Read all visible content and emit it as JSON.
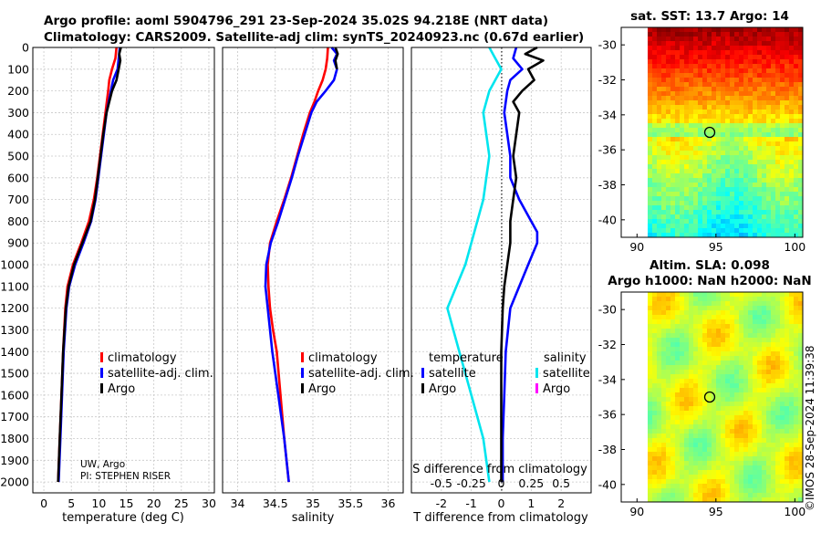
{
  "title": {
    "line1": "Argo profile: aoml 5904796_291 23-Sep-2024 35.02S 94.218E (NRT data)",
    "line2": "Climatology: CARS2009. Satellite-adj clim: synTS_20240923.nc (0.67d earlier)"
  },
  "chart_data": [
    {
      "id": "temperature",
      "type": "line",
      "xlabel": "temperature (deg C)",
      "ylabel": "",
      "xlim": [
        -2,
        31
      ],
      "ylim": [
        2050,
        0
      ],
      "xticks": [
        0,
        5,
        10,
        15,
        20,
        25,
        30
      ],
      "yticks": [
        0,
        100,
        200,
        300,
        400,
        500,
        600,
        700,
        800,
        900,
        1000,
        1100,
        1200,
        1300,
        1400,
        1500,
        1600,
        1700,
        1800,
        1900,
        2000
      ],
      "series": [
        {
          "name": "climatology",
          "color": "#ff0000",
          "depth": [
            0,
            50,
            100,
            150,
            200,
            300,
            400,
            500,
            600,
            700,
            800,
            900,
            1000,
            1100,
            1200,
            1400,
            1600,
            1800,
            2000
          ],
          "values": [
            13.2,
            13.0,
            12.4,
            11.9,
            11.7,
            11.2,
            10.7,
            10.2,
            9.7,
            9.1,
            8.2,
            6.8,
            5.3,
            4.3,
            3.9,
            3.5,
            3.2,
            2.9,
            2.6
          ]
        },
        {
          "name": "satellite-adj. clim.",
          "color": "#0000ff",
          "depth": [
            0,
            50,
            100,
            150,
            200,
            300,
            400,
            500,
            600,
            700,
            800,
            900,
            1000,
            1100,
            1200,
            1400,
            1600,
            1800,
            2000
          ],
          "values": [
            13.8,
            13.6,
            13.4,
            12.6,
            12.2,
            11.4,
            10.9,
            10.4,
            9.9,
            9.4,
            8.6,
            7.2,
            5.7,
            4.6,
            4.1,
            3.6,
            3.3,
            3.0,
            2.7
          ]
        },
        {
          "name": "Argo",
          "color": "#000000",
          "depth": [
            0,
            30,
            60,
            100,
            150,
            200,
            300,
            400,
            500,
            600,
            700,
            800,
            900,
            1000,
            1100,
            1200,
            1400,
            1600,
            1800,
            2000
          ],
          "values": [
            14.0,
            13.7,
            13.9,
            13.6,
            13.2,
            12.4,
            11.4,
            10.8,
            10.3,
            9.8,
            9.3,
            8.5,
            7.0,
            5.5,
            4.5,
            4.0,
            3.5,
            3.2,
            2.9,
            2.6
          ]
        }
      ],
      "annotations": [
        "UW, Argo",
        "PI: STEPHEN RISER"
      ],
      "legend": [
        "climatology",
        "satellite-adj. clim.",
        "Argo"
      ]
    },
    {
      "id": "salinity",
      "type": "line",
      "xlabel": "salinity",
      "xlim": [
        33.8,
        36.2
      ],
      "ylim": [
        2050,
        0
      ],
      "xticks": [
        34,
        34.5,
        35,
        35.5,
        36
      ],
      "series": [
        {
          "name": "climatology",
          "color": "#ff0000",
          "depth": [
            0,
            50,
            100,
            150,
            200,
            250,
            300,
            400,
            500,
            600,
            700,
            800,
            900,
            1000,
            1100,
            1200,
            1300,
            1400,
            1600,
            1800,
            2000
          ],
          "values": [
            35.2,
            35.19,
            35.17,
            35.13,
            35.07,
            35.02,
            34.96,
            34.87,
            34.79,
            34.71,
            34.62,
            34.52,
            34.43,
            34.4,
            34.41,
            34.43,
            34.47,
            34.52,
            34.57,
            34.62,
            34.68
          ]
        },
        {
          "name": "satellite-adj. clim.",
          "color": "#0000ff",
          "depth": [
            0,
            30,
            60,
            100,
            150,
            200,
            250,
            300,
            400,
            500,
            600,
            700,
            800,
            900,
            1000,
            1100,
            1200,
            1300,
            1400,
            1600,
            1800,
            2000
          ],
          "values": [
            35.25,
            35.32,
            35.28,
            35.32,
            35.28,
            35.17,
            35.05,
            34.98,
            34.89,
            34.8,
            34.72,
            34.63,
            34.54,
            34.44,
            34.38,
            34.37,
            34.4,
            34.43,
            34.46,
            34.54,
            34.62,
            34.68
          ]
        },
        {
          "name": "Argo",
          "color": "#000000",
          "depth": [
            0,
            30,
            60,
            100
          ],
          "values": [
            35.3,
            35.33,
            35.3,
            35.32
          ]
        }
      ],
      "legend": [
        "climatology",
        "satellite-adj. clim.",
        "Argo"
      ]
    },
    {
      "id": "difference",
      "type": "line",
      "xlabel": "T difference from climatology",
      "top_xlabel": "S difference from climatology",
      "xlim": [
        -3,
        3
      ],
      "ylim": [
        2050,
        0
      ],
      "xticks": [
        -2,
        -1,
        0,
        1,
        2
      ],
      "top_xticks": [
        -0.5,
        -0.25,
        0,
        0.25,
        0.5
      ],
      "series": [
        {
          "name": "temperature satellite",
          "color": "#0000ff",
          "depth": [
            0,
            50,
            100,
            150,
            200,
            300,
            400,
            500,
            600,
            700,
            800,
            850,
            900,
            1000,
            1100,
            1200,
            1400,
            1600,
            1800,
            2000
          ],
          "values": [
            0.5,
            0.4,
            0.7,
            0.3,
            0.2,
            0.1,
            0.2,
            0.3,
            0.3,
            0.6,
            1.0,
            1.2,
            1.2,
            0.9,
            0.6,
            0.3,
            0.15,
            0.1,
            0.05,
            0.05
          ]
        },
        {
          "name": "temperature Argo",
          "color": "#000000",
          "depth": [
            0,
            30,
            60,
            100,
            150,
            200,
            250,
            300,
            400,
            500,
            600,
            700,
            800,
            900,
            1000,
            1100,
            1200,
            1400,
            1600,
            1800,
            2000
          ],
          "values": [
            1.2,
            0.8,
            1.4,
            0.9,
            1.1,
            0.7,
            0.4,
            0.6,
            0.5,
            0.4,
            0.5,
            0.4,
            0.3,
            0.3,
            0.2,
            0.1,
            0.05,
            0.0,
            0.0,
            0.0,
            0.0
          ]
        },
        {
          "name": "salinity satellite",
          "color": "#00e5ee",
          "depth": [
            0,
            50,
            100,
            200,
            300,
            500,
            700,
            900,
            1000,
            1200,
            1400,
            1600,
            1800,
            2000
          ],
          "values": [
            -0.1,
            -0.05,
            0.0,
            -0.1,
            -0.15,
            -0.1,
            -0.15,
            -0.25,
            -0.3,
            -0.45,
            -0.35,
            -0.25,
            -0.15,
            -0.1
          ]
        },
        {
          "name": "salinity Argo",
          "color": "#ff00ff",
          "depth": [
            0
          ],
          "values": [
            0.0
          ]
        }
      ],
      "legend_temperature_title": "temperature",
      "legend_salinity_title": "salinity",
      "legend_temperature": [
        "satellite",
        "Argo"
      ],
      "legend_salinity": [
        "satellite",
        "Argo"
      ]
    }
  ],
  "maps": {
    "sst": {
      "title": "sat. SST: 13.7 Argo: 14",
      "yticks": [
        "-30",
        "-32",
        "-34",
        "-36",
        "-38",
        "-40"
      ],
      "xticks": [
        "90",
        "95",
        "100"
      ],
      "lat_range": [
        -41,
        -29
      ],
      "lon_range": [
        89,
        100.5
      ],
      "marker_lon": 94.218,
      "marker_lat": -35.02
    },
    "sla": {
      "title1": "Altim. SLA: 0.098",
      "title2": "Argo h1000: NaN h2000: NaN",
      "yticks": [
        "-30",
        "-32",
        "-34",
        "-36",
        "-38",
        "-40"
      ],
      "xticks": [
        "90",
        "95",
        "100"
      ],
      "lat_range": [
        -41,
        -29
      ],
      "lon_range": [
        89,
        100.5
      ],
      "marker_lon": 94.218,
      "marker_lat": -35.02
    },
    "credit": "©IMOS 28-Sep-2024 11:39:38"
  },
  "colors": {
    "red": "#ff0000",
    "blue": "#0000ff",
    "black": "#000000",
    "cyan": "#00e5ee",
    "magenta": "#ff00ff"
  }
}
